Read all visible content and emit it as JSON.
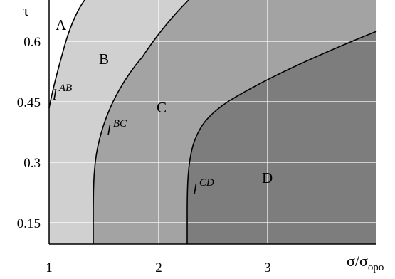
{
  "diagram": {
    "y_axis_label": "τ",
    "x_axis_label": "σ/σ",
    "x_axis_label_sub": "opo",
    "x_ticks": [
      {
        "value": 1,
        "label": "1"
      },
      {
        "value": 2,
        "label": "2"
      },
      {
        "value": 3,
        "label": "3"
      }
    ],
    "y_ticks": [
      {
        "value": 0.15,
        "label": "0.15"
      },
      {
        "value": 0.3,
        "label": "0.3"
      },
      {
        "value": 0.45,
        "label": "0.45"
      },
      {
        "value": 0.6,
        "label": "0.6"
      }
    ],
    "regions": [
      {
        "id": "A",
        "label": "A",
        "fill": "#ffffff"
      },
      {
        "id": "B",
        "label": "B",
        "fill": "#d0d0d0"
      },
      {
        "id": "C",
        "label": "C",
        "fill": "#a3a3a3"
      },
      {
        "id": "D",
        "label": "D",
        "fill": "#7d7d7d"
      }
    ],
    "curves": [
      {
        "id": "AB",
        "base": "l",
        "sup": "AB"
      },
      {
        "id": "BC",
        "base": "l",
        "sup": "BC"
      },
      {
        "id": "CD",
        "base": "l",
        "sup": "CD"
      }
    ],
    "colors": {
      "frame": "#000000",
      "gridline": "#ffffff"
    }
  }
}
